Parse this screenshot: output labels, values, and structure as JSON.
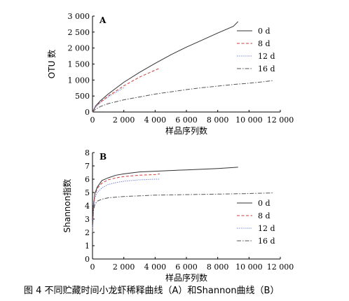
{
  "figure_caption": "图 4 不同贮藏时间小龙虾稀释曲线（A）和Shannon曲线（B）",
  "chart_data": [
    {
      "type": "line",
      "panel": "A",
      "ylabel": "OTU 数",
      "xlabel": "样品序列数",
      "xlim": [
        0,
        12000
      ],
      "ylim": [
        0,
        3000
      ],
      "xticks": [
        0,
        2000,
        4000,
        6000,
        8000,
        10000,
        12000
      ],
      "xtick_labels": [
        "0",
        "2 000",
        "4 000",
        "6 000",
        "8 000",
        "10 000",
        "12 000"
      ],
      "yticks": [
        0,
        500,
        1000,
        1500,
        2000,
        2500,
        3000
      ],
      "ytick_labels": [
        "0",
        "500",
        "1 000",
        "1 500",
        "2 000",
        "2 500",
        "3 000"
      ],
      "legend_position": "top-right",
      "series": [
        {
          "name": "0 d",
          "color": "#333333",
          "dash": "solid",
          "x": [
            0,
            200,
            500,
            1000,
            2000,
            3000,
            4000,
            5000,
            6000,
            7000,
            8000,
            9000,
            9300
          ],
          "y": [
            0,
            190,
            350,
            560,
            930,
            1240,
            1520,
            1790,
            2030,
            2250,
            2470,
            2680,
            2830
          ]
        },
        {
          "name": "8 d",
          "color": "#d03a3a",
          "dash": "dashed",
          "x": [
            0,
            200,
            500,
            1000,
            2000,
            3000,
            4000,
            4300
          ],
          "y": [
            0,
            170,
            310,
            500,
            820,
            1090,
            1310,
            1370
          ]
        },
        {
          "name": "12 d",
          "color": "#5a6fd0",
          "dash": "dotted",
          "x": [
            0,
            200,
            500,
            1000,
            1500,
            2000
          ],
          "y": [
            0,
            160,
            290,
            470,
            620,
            760
          ]
        },
        {
          "name": "16 d",
          "color": "#555555",
          "dash": "dashdot",
          "x": [
            0,
            200,
            500,
            1000,
            2000,
            3000,
            4000,
            5000,
            6000,
            7000,
            8000,
            9000,
            10000,
            11000,
            11500
          ],
          "y": [
            0,
            90,
            170,
            260,
            380,
            470,
            560,
            630,
            700,
            760,
            810,
            860,
            900,
            950,
            980
          ]
        }
      ]
    },
    {
      "type": "line",
      "panel": "B",
      "ylabel": "Shannon指数",
      "xlabel": "样品序列数",
      "xlim": [
        0,
        12000
      ],
      "ylim": [
        0,
        8
      ],
      "xticks": [
        0,
        2000,
        4000,
        6000,
        8000,
        10000,
        12000
      ],
      "xtick_labels": [
        "0",
        "2 000",
        "4 000",
        "6 000",
        "8 000",
        "10 000",
        "12 000"
      ],
      "yticks": [
        0,
        1,
        2,
        3,
        4,
        5,
        6,
        7,
        8
      ],
      "ytick_labels": [
        "0",
        "1",
        "2",
        "3",
        "4",
        "5",
        "6",
        "7",
        "8"
      ],
      "legend_position": "right",
      "series": [
        {
          "name": "0 d",
          "color": "#333333",
          "dash": "solid",
          "x": [
            0,
            60,
            150,
            300,
            600,
            1000,
            1500,
            2000,
            3000,
            4000,
            5000,
            6000,
            7000,
            8000,
            9300
          ],
          "y": [
            2.4,
            4.0,
            4.9,
            5.4,
            5.9,
            6.1,
            6.3,
            6.4,
            6.55,
            6.6,
            6.65,
            6.7,
            6.75,
            6.8,
            6.9
          ]
        },
        {
          "name": "8 d",
          "color": "#d03a3a",
          "dash": "dashed",
          "x": [
            0,
            60,
            150,
            300,
            600,
            1000,
            1500,
            2000,
            3000,
            4000,
            4300
          ],
          "y": [
            2.3,
            3.9,
            4.8,
            5.3,
            5.7,
            5.95,
            6.1,
            6.2,
            6.3,
            6.35,
            6.4
          ]
        },
        {
          "name": "12 d",
          "color": "#5a6fd0",
          "dash": "dotted",
          "x": [
            0,
            60,
            150,
            300,
            600,
            1000,
            1500,
            2000,
            3000,
            4000,
            4300
          ],
          "y": [
            2.2,
            3.8,
            4.6,
            5.0,
            5.35,
            5.6,
            5.75,
            5.85,
            5.95,
            6.0,
            6.0
          ]
        },
        {
          "name": "16 d",
          "color": "#555555",
          "dash": "dashdot",
          "x": [
            0,
            60,
            150,
            300,
            600,
            1000,
            1500,
            2000,
            3000,
            4000,
            5000,
            6000,
            7000,
            8000,
            9000,
            10000,
            11000,
            11500
          ],
          "y": [
            2.0,
            3.6,
            4.1,
            4.35,
            4.5,
            4.6,
            4.65,
            4.7,
            4.75,
            4.8,
            4.82,
            4.84,
            4.86,
            4.88,
            4.9,
            4.92,
            4.95,
            4.97
          ]
        }
      ]
    }
  ]
}
